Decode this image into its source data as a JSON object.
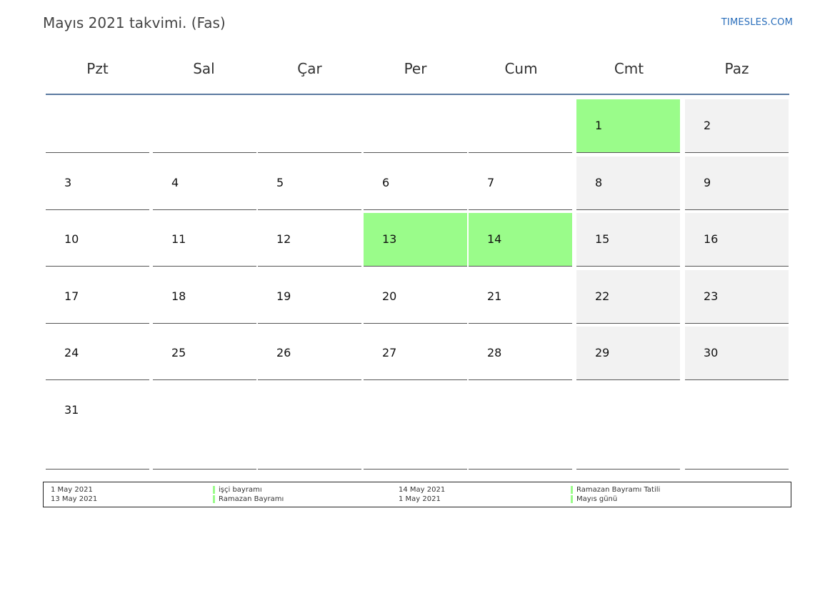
{
  "header": {
    "title": "Mayıs 2021 takvimi. (Fas)",
    "brand": "TIMESLES.COM"
  },
  "weekdays": [
    "Pzt",
    "Sal",
    "Çar",
    "Per",
    "Cum",
    "Cmt",
    "Paz"
  ],
  "weeks": [
    [
      {
        "day": "",
        "type": "empty"
      },
      {
        "day": "",
        "type": "empty"
      },
      {
        "day": "",
        "type": "empty"
      },
      {
        "day": "",
        "type": "empty"
      },
      {
        "day": "",
        "type": "empty"
      },
      {
        "day": "1",
        "type": "holiday"
      },
      {
        "day": "2",
        "type": "weekend"
      }
    ],
    [
      {
        "day": "3",
        "type": "normal"
      },
      {
        "day": "4",
        "type": "normal"
      },
      {
        "day": "5",
        "type": "normal"
      },
      {
        "day": "6",
        "type": "normal"
      },
      {
        "day": "7",
        "type": "normal"
      },
      {
        "day": "8",
        "type": "weekend"
      },
      {
        "day": "9",
        "type": "weekend"
      }
    ],
    [
      {
        "day": "10",
        "type": "normal"
      },
      {
        "day": "11",
        "type": "normal"
      },
      {
        "day": "12",
        "type": "normal"
      },
      {
        "day": "13",
        "type": "holiday"
      },
      {
        "day": "14",
        "type": "holiday"
      },
      {
        "day": "15",
        "type": "weekend"
      },
      {
        "day": "16",
        "type": "weekend"
      }
    ],
    [
      {
        "day": "17",
        "type": "normal"
      },
      {
        "day": "18",
        "type": "normal"
      },
      {
        "day": "19",
        "type": "normal"
      },
      {
        "day": "20",
        "type": "normal"
      },
      {
        "day": "21",
        "type": "normal"
      },
      {
        "day": "22",
        "type": "weekend"
      },
      {
        "day": "23",
        "type": "weekend"
      }
    ],
    [
      {
        "day": "24",
        "type": "normal"
      },
      {
        "day": "25",
        "type": "normal"
      },
      {
        "day": "26",
        "type": "normal"
      },
      {
        "day": "27",
        "type": "normal"
      },
      {
        "day": "28",
        "type": "normal"
      },
      {
        "day": "29",
        "type": "weekend"
      },
      {
        "day": "30",
        "type": "weekend"
      }
    ],
    [
      {
        "day": "31",
        "type": "normal"
      },
      {
        "day": "",
        "type": "empty"
      },
      {
        "day": "",
        "type": "empty"
      },
      {
        "day": "",
        "type": "empty"
      },
      {
        "day": "",
        "type": "empty"
      },
      {
        "day": "",
        "type": "empty"
      },
      {
        "day": "",
        "type": "empty"
      }
    ]
  ],
  "legend": [
    {
      "date": "1 May 2021",
      "name": "işçi bayramı"
    },
    {
      "date": "13 May 2021",
      "name": "Ramazan Bayramı"
    },
    {
      "date": "14 May 2021",
      "name": "Ramazan Bayramı Tatili"
    },
    {
      "date": "1 May 2021",
      "name": "Mayıs günü"
    }
  ],
  "colors": {
    "holiday": "#9afc8a",
    "weekend": "#f2f2f2",
    "header_line": "#5a7aa0",
    "brand": "#2a6ebb"
  }
}
